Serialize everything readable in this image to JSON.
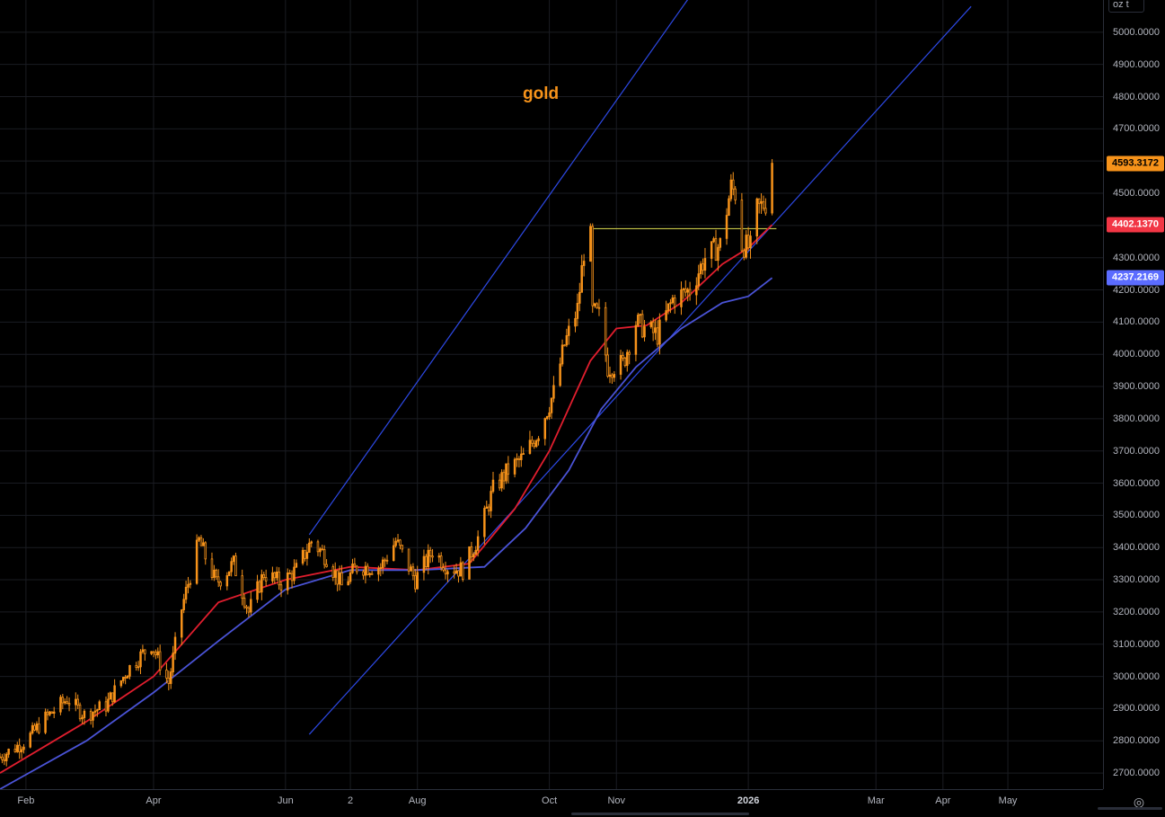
{
  "chart_data": {
    "type": "candlestick",
    "title": "gold",
    "instrument_unit": "oz t",
    "ylim": [
      2650,
      5100
    ],
    "y_ticks": [
      "2700.0000",
      "2800.0000",
      "2900.0000",
      "3000.0000",
      "3100.0000",
      "3200.0000",
      "3300.0000",
      "3400.0000",
      "3500.0000",
      "3600.0000",
      "3700.0000",
      "3800.0000",
      "3900.0000",
      "4000.0000",
      "4100.0000",
      "4200.0000",
      "4300.0000",
      "4400.0000",
      "4500.0000",
      "4600.0000",
      "4700.0000",
      "4800.0000",
      "4900.0000",
      "5000.0000"
    ],
    "x_ticks": [
      {
        "label": "Feb",
        "date": "2025-02-01"
      },
      {
        "label": "Apr",
        "date": "2025-04-01"
      },
      {
        "label": "Jun",
        "date": "2025-06-01"
      },
      {
        "label": "2",
        "date": "2025-07-01"
      },
      {
        "label": "Aug",
        "date": "2025-08-01"
      },
      {
        "label": "Oct",
        "date": "2025-10-01"
      },
      {
        "label": "Nov",
        "date": "2025-11-01"
      },
      {
        "label": "2026",
        "date": "2026-01-01",
        "bold": true
      },
      {
        "label": "Mar",
        "date": "2026-03-01"
      },
      {
        "label": "Apr",
        "date": "2026-04-01"
      },
      {
        "label": "May",
        "date": "2026-05-01"
      }
    ],
    "x_range": [
      "2025-01-20",
      "2026-06-14"
    ],
    "price_path": [
      [
        "2025-01-20",
        2750
      ],
      [
        "2025-02-01",
        2800
      ],
      [
        "2025-02-10",
        2870
      ],
      [
        "2025-02-20",
        2930
      ],
      [
        "2025-02-28",
        2880
      ],
      [
        "2025-03-10",
        2910
      ],
      [
        "2025-03-20",
        3020
      ],
      [
        "2025-03-31",
        3100
      ],
      [
        "2025-04-08",
        2980
      ],
      [
        "2025-04-14",
        3210
      ],
      [
        "2025-04-22",
        3420
      ],
      [
        "2025-04-30",
        3290
      ],
      [
        "2025-05-08",
        3350
      ],
      [
        "2025-05-15",
        3200
      ],
      [
        "2025-05-22",
        3320
      ],
      [
        "2025-05-30",
        3290
      ],
      [
        "2025-06-06",
        3330
      ],
      [
        "2025-06-13",
        3420
      ],
      [
        "2025-06-20",
        3370
      ],
      [
        "2025-06-27",
        3280
      ],
      [
        "2025-07-04",
        3340
      ],
      [
        "2025-07-15",
        3340
      ],
      [
        "2025-07-22",
        3420
      ],
      [
        "2025-07-31",
        3300
      ],
      [
        "2025-08-08",
        3390
      ],
      [
        "2025-08-15",
        3340
      ],
      [
        "2025-08-22",
        3330
      ],
      [
        "2025-08-29",
        3430
      ],
      [
        "2025-09-05",
        3580
      ],
      [
        "2025-09-12",
        3640
      ],
      [
        "2025-09-19",
        3680
      ],
      [
        "2025-09-26",
        3760
      ],
      [
        "2025-10-03",
        3880
      ],
      [
        "2025-10-08",
        4030
      ],
      [
        "2025-10-14",
        4140
      ],
      [
        "2025-10-17",
        4320
      ],
      [
        "2025-10-20",
        4360
      ],
      [
        "2025-10-21",
        4130
      ],
      [
        "2025-10-24",
        4120
      ],
      [
        "2025-10-28",
        3960
      ],
      [
        "2025-11-04",
        3970
      ],
      [
        "2025-11-10",
        4100
      ],
      [
        "2025-11-14",
        4080
      ],
      [
        "2025-11-20",
        4060
      ],
      [
        "2025-11-27",
        4170
      ],
      [
        "2025-12-05",
        4200
      ],
      [
        "2025-12-12",
        4300
      ],
      [
        "2025-12-19",
        4340
      ],
      [
        "2025-12-24",
        4520
      ],
      [
        "2025-12-26",
        4500
      ],
      [
        "2025-12-29",
        4340
      ],
      [
        "2026-01-02",
        4330
      ],
      [
        "2026-01-05",
        4450
      ],
      [
        "2026-01-09",
        4470
      ],
      [
        "2026-01-12",
        4593.3172
      ]
    ],
    "series": [
      {
        "name": "",
        "color": "#e01e2e",
        "role": "fast moving average",
        "points": [
          [
            "2025-01-20",
            2700
          ],
          [
            "2025-03-01",
            2860
          ],
          [
            "2025-04-01",
            3000
          ],
          [
            "2025-05-01",
            3230
          ],
          [
            "2025-06-01",
            3300
          ],
          [
            "2025-07-01",
            3340
          ],
          [
            "2025-08-01",
            3330
          ],
          [
            "2025-08-25",
            3350
          ],
          [
            "2025-09-15",
            3520
          ],
          [
            "2025-10-01",
            3700
          ],
          [
            "2025-10-20",
            3980
          ],
          [
            "2025-11-01",
            4080
          ],
          [
            "2025-11-15",
            4090
          ],
          [
            "2025-12-01",
            4160
          ],
          [
            "2025-12-20",
            4280
          ],
          [
            "2026-01-01",
            4330
          ],
          [
            "2026-01-12",
            4402.137
          ]
        ]
      },
      {
        "name": "",
        "color": "#4a53d6",
        "role": "slow moving average",
        "points": [
          [
            "2025-01-20",
            2650
          ],
          [
            "2025-03-01",
            2800
          ],
          [
            "2025-04-01",
            2950
          ],
          [
            "2025-05-01",
            3110
          ],
          [
            "2025-06-01",
            3270
          ],
          [
            "2025-07-01",
            3330
          ],
          [
            "2025-08-01",
            3330
          ],
          [
            "2025-09-01",
            3340
          ],
          [
            "2025-09-20",
            3460
          ],
          [
            "2025-10-10",
            3640
          ],
          [
            "2025-10-25",
            3830
          ],
          [
            "2025-11-10",
            3960
          ],
          [
            "2025-12-01",
            4080
          ],
          [
            "2025-12-20",
            4160
          ],
          [
            "2026-01-01",
            4180
          ],
          [
            "2026-01-12",
            4237.2169
          ]
        ]
      }
    ],
    "trendlines": [
      {
        "color": "#2d49e6",
        "points": [
          [
            "2025-06-12",
            3440
          ],
          [
            "2025-12-07",
            5130
          ]
        ]
      },
      {
        "color": "#2d49e6",
        "points": [
          [
            "2025-06-12",
            2820
          ],
          [
            "2026-04-14",
            5080
          ]
        ]
      },
      {
        "color": "#c8c84a",
        "points": [
          [
            "2025-10-20",
            4390
          ],
          [
            "2026-01-14",
            4390
          ]
        ]
      }
    ],
    "price_labels": [
      {
        "value": "4593.3172",
        "y": 4593.3172,
        "bg": "#f7931a",
        "fg": "#000000"
      },
      {
        "value": "4402.1370",
        "y": 4402.137,
        "bg": "#f23645",
        "fg": "#ffffff"
      },
      {
        "value": "4237.2169",
        "y": 4237.2169,
        "bg": "#5b6cff",
        "fg": "#ffffff"
      }
    ],
    "candle_color": "#f7931a",
    "grid": true
  }
}
